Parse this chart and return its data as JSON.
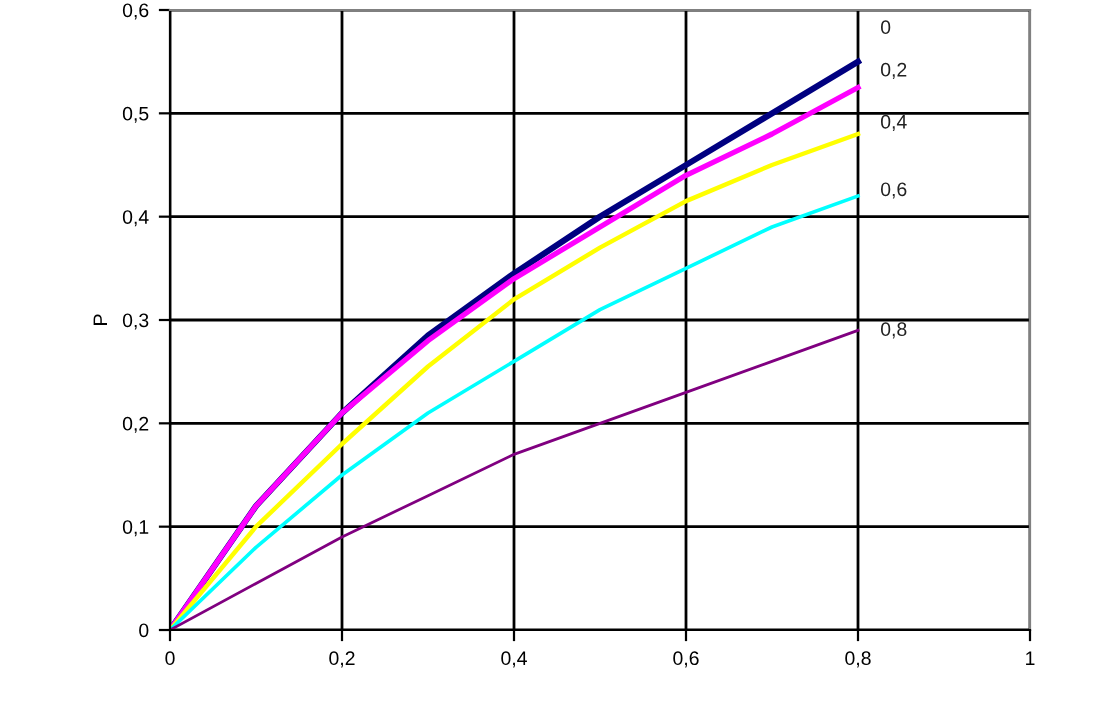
{
  "chart_data": {
    "type": "line",
    "ylabel": "P",
    "x": [
      0,
      0.1,
      0.2,
      0.3,
      0.4,
      0.5,
      0.6,
      0.7,
      0.8
    ],
    "series": [
      {
        "name": "0",
        "color": "#000080",
        "values": [
          0,
          0.12,
          0.21,
          0.285,
          0.345,
          0.4,
          0.45,
          0.5,
          0.55
        ]
      },
      {
        "name": "0,2",
        "color": "#ff00ff",
        "values": [
          0,
          0.12,
          0.21,
          0.28,
          0.34,
          0.39,
          0.44,
          0.48,
          0.525
        ]
      },
      {
        "name": "0,4",
        "color": "#ffff00",
        "values": [
          0,
          0.1,
          0.18,
          0.255,
          0.32,
          0.37,
          0.415,
          0.45,
          0.48
        ]
      },
      {
        "name": "0,6",
        "color": "#00ffff",
        "values": [
          0,
          0.08,
          0.15,
          0.21,
          0.26,
          0.31,
          0.35,
          0.39,
          0.42
        ]
      },
      {
        "name": "0,8",
        "color": "#800080",
        "values": [
          0,
          0.045,
          0.09,
          0.13,
          0.17,
          0.2,
          0.23,
          0.26,
          0.29
        ]
      }
    ],
    "xlim": [
      0,
      1
    ],
    "ylim": [
      0,
      0.6
    ],
    "xticks": [
      0,
      {
        "value": 0.2,
        "label": "0,2"
      },
      {
        "value": 0.4,
        "label": "0,4"
      },
      {
        "value": 0.6,
        "label": "0,6"
      },
      {
        "value": 0.8,
        "label": "0,8"
      },
      1
    ],
    "yticks": [
      0,
      {
        "value": 0.1,
        "label": "0,1"
      },
      {
        "value": 0.2,
        "label": "0,2"
      },
      {
        "value": 0.3,
        "label": "0,3"
      },
      {
        "value": 0.4,
        "label": "0,4"
      },
      {
        "value": 0.5,
        "label": "0,5"
      },
      {
        "value": 0.6,
        "label": "0,6"
      }
    ],
    "grid": true,
    "marker": "none",
    "line_style": "solid"
  }
}
